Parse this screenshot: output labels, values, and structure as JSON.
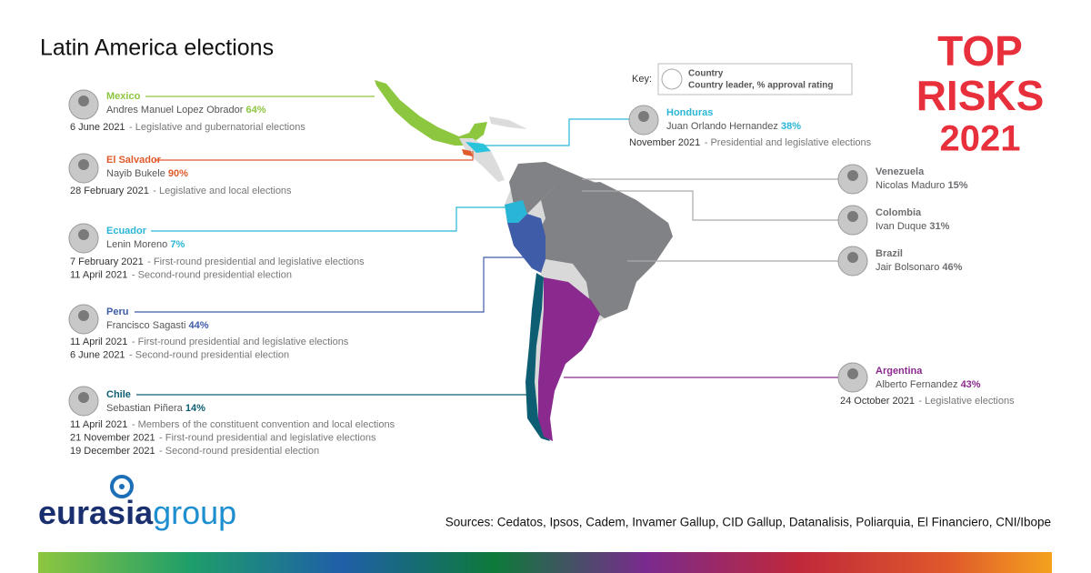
{
  "title": "Latin America elections",
  "key": {
    "label": "Key:",
    "country": "Country",
    "leader": "Country leader, % approval rating"
  },
  "brand": {
    "top": "TOP",
    "risks": "RISKS",
    "year": "2021"
  },
  "countries": [
    {
      "name": "Mexico",
      "color": "#8dc63f",
      "leader": "Andres Manuel Lopez Obrador",
      "approval": "64%",
      "elections": [
        {
          "date": "6 June 2021",
          "text": "- Legislative and gubernatorial elections"
        }
      ]
    },
    {
      "name": "El Salvador",
      "color": "#e05a2b",
      "leader": "Nayib Bukele",
      "approval": "90%",
      "elections": [
        {
          "date": "28 February 2021",
          "text": "- Legislative and local elections"
        }
      ]
    },
    {
      "name": "Ecuador",
      "color": "#29b6d6",
      "leader": "Lenin Moreno",
      "approval": "7%",
      "elections": [
        {
          "date": "7 February 2021",
          "text": "- First-round presidential and legislative elections"
        },
        {
          "date": "11 April 2021",
          "text": "- Second-round presidential election"
        }
      ]
    },
    {
      "name": "Peru",
      "color": "#3f5ca8",
      "leader": "Francisco Sagasti",
      "approval": "44%",
      "elections": [
        {
          "date": "11 April 2021",
          "text": "- First-round presidential and legislative elections"
        },
        {
          "date": "6 June 2021",
          "text": "- Second-round presidential election"
        }
      ]
    },
    {
      "name": "Chile",
      "color": "#0d5e73",
      "leader": "Sebastian Piñera",
      "approval": "14%",
      "elections": [
        {
          "date": "11 April 2021",
          "text": "- Members of the constituent convention and local elections"
        },
        {
          "date": "21 November 2021",
          "text": "- First-round presidential and legislative elections"
        },
        {
          "date": "19 December 2021",
          "text": "- Second-round presidential election"
        }
      ]
    },
    {
      "name": "Honduras",
      "color": "#29b6d6",
      "leader": "Juan Orlando Hernandez",
      "approval": "38%",
      "elections": [
        {
          "date": "November 2021",
          "text": "- Presidential and legislative elections"
        }
      ]
    },
    {
      "name": "Venezuela",
      "color": "#6d6e71",
      "leader": "Nicolas Maduro",
      "approval": "15%",
      "elections": []
    },
    {
      "name": "Colombia",
      "color": "#6d6e71",
      "leader": "Ivan Duque",
      "approval": "31%",
      "elections": []
    },
    {
      "name": "Brazil",
      "color": "#6d6e71",
      "leader": "Jair Bolsonaro",
      "approval": "46%",
      "elections": []
    },
    {
      "name": "Argentina",
      "color": "#8b2a8e",
      "leader": "Alberto Fernandez",
      "approval": "43%",
      "elections": [
        {
          "date": "24 October 2021",
          "text": "- Legislative elections"
        }
      ]
    }
  ],
  "logo": {
    "a": "eurasia",
    "b": "group"
  },
  "sources": "Sources: Cedatos, Ipsos, Cadem, Invamer Gallup, CID Gallup, Datanalisis, Poliarquia, El Financiero, CNI/Ibope"
}
